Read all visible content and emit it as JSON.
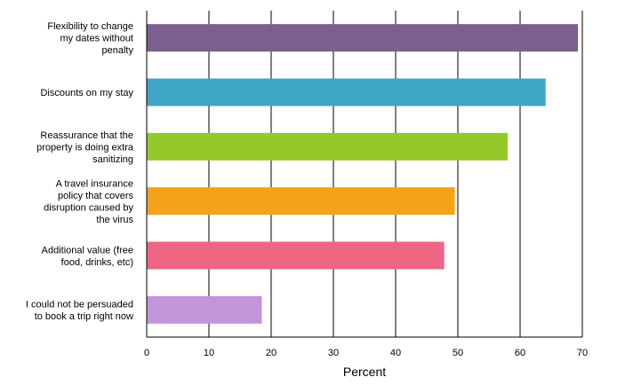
{
  "chart_data": {
    "type": "bar",
    "orientation": "horizontal",
    "categories": [
      "Flexibility to change my dates without penalty",
      "Discounts on my stay",
      "Reassurance that the property is doing extra sanitizing",
      "A travel insurance policy that covers disruption caused by the virus",
      "Additional value (free food, drinks, etc)",
      "I could not be persuaded to book a trip right now"
    ],
    "category_lines": [
      [
        "Flexibility to change",
        "my dates without",
        "penalty"
      ],
      [
        "Discounts on my stay"
      ],
      [
        "Reassurance that the",
        "property is doing extra",
        "sanitizing"
      ],
      [
        "A travel insurance",
        "policy that covers",
        "disruption caused by",
        "the virus"
      ],
      [
        "Additional value (free",
        "food, drinks, etc)"
      ],
      [
        "I could not be persuaded",
        "to book a trip right now"
      ]
    ],
    "values": [
      69.3,
      64.1,
      58.0,
      49.5,
      47.8,
      18.5
    ],
    "colors": [
      "#7a5f8f",
      "#3ea6c6",
      "#95c82b",
      "#f5a21b",
      "#ee6585",
      "#c294d9"
    ],
    "xlabel": "Percent",
    "xlim": [
      0,
      70
    ],
    "xticks": [
      0,
      10,
      20,
      30,
      40,
      50,
      60,
      70
    ],
    "grid": true
  }
}
